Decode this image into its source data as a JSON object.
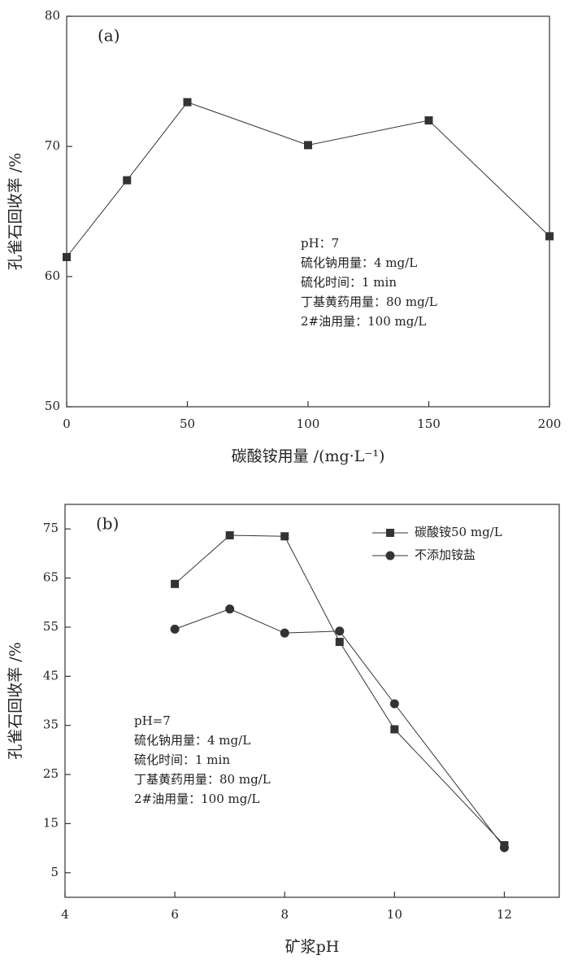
{
  "chart_data": [
    {
      "type": "line",
      "title": "(a)",
      "x_label": "碳酸铵用量 /(mg·L⁻¹)",
      "y_label": "孔雀石回收率 /%",
      "x": [
        0,
        25,
        50,
        100,
        150,
        200
      ],
      "series": [
        {
          "name": null,
          "color": "#333333",
          "marker": "square",
          "values": [
            61.5,
            67.4,
            73.4,
            70.1,
            72.0,
            63.1
          ]
        }
      ],
      "xlim": [
        0,
        200
      ],
      "xticks": [
        0,
        50,
        100,
        150,
        200
      ],
      "ylim": [
        50,
        80
      ],
      "yticks": [
        50,
        60,
        70,
        80
      ],
      "annotations": [
        "pH：7",
        "硫化钠用量：4 mg/L",
        "硫化时间：1 min",
        "丁基黄药用量：80 mg/L",
        "2#油用量：100 mg/L"
      ]
    },
    {
      "type": "line",
      "title": "(b)",
      "x_label": "矿浆pH",
      "y_label": "孔雀石回收率 /%",
      "x": [
        6,
        7,
        8,
        9,
        10,
        12
      ],
      "series": [
        {
          "name": "碳酸铵50 mg/L",
          "color": "#333333",
          "marker": "square",
          "values": [
            63.8,
            73.7,
            73.5,
            52.0,
            34.2,
            10.6
          ]
        },
        {
          "name": "不添加铵盐",
          "color": "#333333",
          "marker": "circle",
          "values": [
            54.6,
            58.7,
            53.8,
            54.2,
            39.4,
            10.1
          ]
        }
      ],
      "xlim": [
        4,
        13
      ],
      "xticks": [
        4,
        6,
        8,
        10,
        12
      ],
      "ylim": [
        0,
        80
      ],
      "yticks": [
        5,
        15,
        25,
        35,
        45,
        55,
        65,
        75
      ],
      "legend": "upper right",
      "annotations": [
        "pH=7",
        "硫化钠用量：4 mg/L",
        "硫化时间：1 min",
        "丁基黄药用量：80 mg/L",
        "2#油用量：100 mg/L"
      ]
    }
  ]
}
